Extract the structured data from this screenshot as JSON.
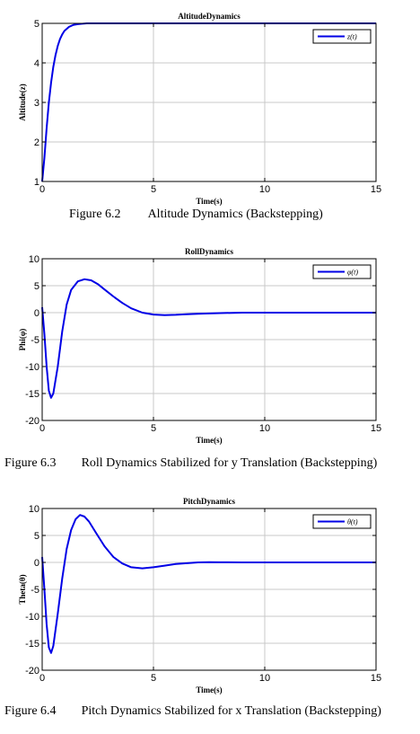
{
  "captions": [
    {
      "number": "Figure 6.2",
      "text": "Altitude Dynamics (Backstepping)"
    },
    {
      "number": "Figure 6.3",
      "text": "Roll Dynamics Stabilized for y Translation (Backstepping)"
    },
    {
      "number": "Figure 6.4",
      "text": "Pitch Dynamics Stabilized for x Translation (Backstepping)"
    }
  ],
  "colors": {
    "line": "#0000e6",
    "grid": "#c8c8c8",
    "axis": "#000000"
  },
  "chart_data": [
    {
      "type": "line",
      "title": "AltitudeDynamics",
      "xlabel": "Time(s)",
      "ylabel": "Altitude(z)",
      "legend": "z(t)",
      "legend_position": "top-right",
      "grid": true,
      "xlim": [
        0,
        15
      ],
      "ylim": [
        1,
        5
      ],
      "xticks": [
        0,
        5,
        10,
        15
      ],
      "yticks": [
        1,
        2,
        3,
        4,
        5
      ],
      "x": [
        0,
        0.1,
        0.2,
        0.3,
        0.4,
        0.5,
        0.6,
        0.7,
        0.8,
        0.9,
        1.0,
        1.2,
        1.4,
        1.6,
        1.8,
        2.0,
        2.5,
        3.0,
        4.0,
        6.0,
        10.0,
        15.0
      ],
      "y": [
        1.0,
        1.6,
        2.35,
        3.0,
        3.5,
        3.9,
        4.2,
        4.43,
        4.6,
        4.72,
        4.81,
        4.91,
        4.96,
        4.98,
        4.99,
        5.0,
        5.0,
        5.0,
        5.0,
        5.0,
        5.0,
        5.0
      ]
    },
    {
      "type": "line",
      "title": "RollDynamics",
      "xlabel": "Time(s)",
      "ylabel": "Phi(φ)",
      "legend": "φ(t)",
      "legend_position": "top-right",
      "grid": true,
      "xlim": [
        0,
        15
      ],
      "ylim": [
        -20,
        10
      ],
      "xticks": [
        0,
        5,
        10,
        15
      ],
      "yticks": [
        10,
        5,
        0,
        -5,
        -10,
        -15,
        -20
      ],
      "x": [
        0,
        0.1,
        0.2,
        0.3,
        0.4,
        0.5,
        0.7,
        0.9,
        1.1,
        1.3,
        1.6,
        1.9,
        2.2,
        2.5,
        2.8,
        3.2,
        3.6,
        4.0,
        4.5,
        5.0,
        5.5,
        6.0,
        6.5,
        7.0,
        8.0,
        9.0,
        10.0,
        12.0,
        15.0
      ],
      "y": [
        1.0,
        -4.0,
        -10.0,
        -14.5,
        -15.8,
        -15.0,
        -10.0,
        -3.5,
        1.5,
        4.2,
        5.8,
        6.2,
        6.0,
        5.3,
        4.3,
        3.0,
        1.8,
        0.8,
        0.0,
        -0.35,
        -0.45,
        -0.4,
        -0.3,
        -0.2,
        -0.08,
        0.0,
        0.0,
        0.0,
        0.0
      ]
    },
    {
      "type": "line",
      "title": "PitchDynamics",
      "xlabel": "Time(s)",
      "ylabel": "Theta(θ)",
      "legend": "θ(t)",
      "legend_position": "top-right",
      "grid": true,
      "xlim": [
        0,
        15
      ],
      "ylim": [
        -20,
        10
      ],
      "xticks": [
        0,
        5,
        10,
        15
      ],
      "yticks": [
        10,
        5,
        0,
        -5,
        -10,
        -15,
        -20
      ],
      "x": [
        0,
        0.1,
        0.2,
        0.3,
        0.4,
        0.5,
        0.7,
        0.9,
        1.1,
        1.3,
        1.5,
        1.7,
        1.9,
        2.1,
        2.4,
        2.8,
        3.2,
        3.6,
        4.0,
        4.5,
        5.0,
        5.5,
        6.0,
        7.0,
        7.5,
        8.0,
        9.0,
        10.0,
        12.0,
        15.0
      ],
      "y": [
        1.0,
        -5.0,
        -11.5,
        -15.8,
        -16.8,
        -15.5,
        -9.5,
        -3.0,
        2.5,
        6.0,
        8.0,
        8.8,
        8.5,
        7.6,
        5.6,
        3.0,
        1.0,
        -0.2,
        -0.9,
        -1.1,
        -0.9,
        -0.6,
        -0.3,
        0.0,
        0.05,
        0.03,
        0.0,
        0.0,
        0.0,
        0.0
      ]
    }
  ]
}
